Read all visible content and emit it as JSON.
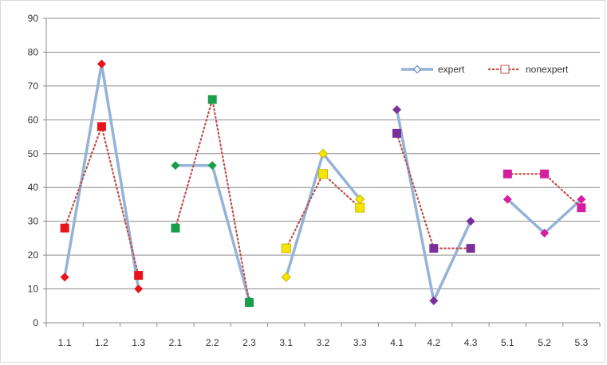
{
  "chart_data": {
    "type": "line",
    "title": "",
    "xlabel": "",
    "ylabel": "",
    "ylim": [
      0,
      90
    ],
    "yticks": [
      0,
      10,
      20,
      30,
      40,
      50,
      60,
      70,
      80,
      90
    ],
    "grid": true,
    "legend_position": "top-right",
    "categories": [
      "1.1",
      "1.2",
      "1.3",
      "2.1",
      "2.2",
      "2.3",
      "3.1",
      "3.2",
      "3.3",
      "4.1",
      "4.2",
      "4.3",
      "5.1",
      "5.2",
      "5.3"
    ],
    "groups": [
      [
        0,
        1,
        2
      ],
      [
        3,
        4,
        5
      ],
      [
        6,
        7,
        8
      ],
      [
        9,
        10,
        11
      ],
      [
        12,
        13,
        14
      ]
    ],
    "group_colors": [
      "#e8141c",
      "#1a9e4b",
      "#f5e400",
      "#7a2f9a",
      "#d61f9e"
    ],
    "series": [
      {
        "name": "expert",
        "line_color": "#95b3d7",
        "values": [
          13.5,
          76.5,
          10,
          46.5,
          46.5,
          6.5,
          13.5,
          50,
          36.5,
          63,
          6.5,
          30,
          36.5,
          26.5,
          36.5
        ]
      },
      {
        "name": "nonexpert",
        "line_color": "#c0504d",
        "values": [
          28,
          58,
          14,
          28,
          66,
          6,
          22,
          44,
          34,
          56,
          22,
          22,
          44,
          44,
          34
        ]
      }
    ]
  }
}
